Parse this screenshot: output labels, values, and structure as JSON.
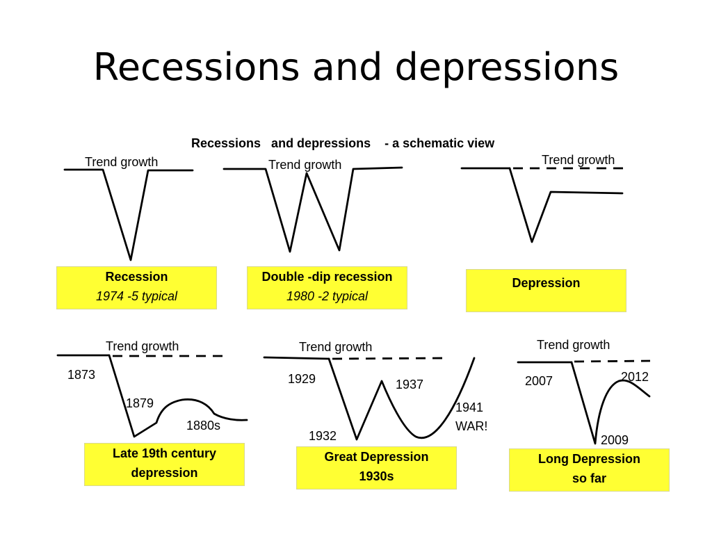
{
  "slide": {
    "title": "Recessions and depressions",
    "subtitle": "Recessions   and depressions    - a schematic view"
  },
  "panels": {
    "recession": {
      "trend_label": "Trend growth",
      "box": {
        "line1": "Recession",
        "line2": "1974 -5 typical"
      }
    },
    "double_dip": {
      "trend_label": "Trend growth",
      "box": {
        "line1": "Double -dip recession",
        "line2": "1980 -2 typical"
      }
    },
    "depression": {
      "trend_label": "Trend growth",
      "box": {
        "line1": "Depression"
      }
    },
    "late_19th": {
      "trend_label": "Trend growth",
      "year_labels": [
        "1873",
        "1879",
        "1880s"
      ],
      "box": {
        "line1": "Late 19th century",
        "line2": "depression"
      }
    },
    "great_depression": {
      "trend_label": "Trend growth",
      "year_labels": [
        "1929",
        "1932",
        "1937",
        "1941",
        "WAR!"
      ],
      "box": {
        "line1": "Great Depression",
        "line2": "1930s"
      }
    },
    "long_depression": {
      "trend_label": "Trend growth",
      "year_labels": [
        "2007",
        "2009",
        "2012"
      ],
      "box": {
        "line1": "Long Depression",
        "line2": "so far"
      }
    }
  },
  "colors": {
    "box_fill": "#ffff33",
    "line": "#000000"
  }
}
